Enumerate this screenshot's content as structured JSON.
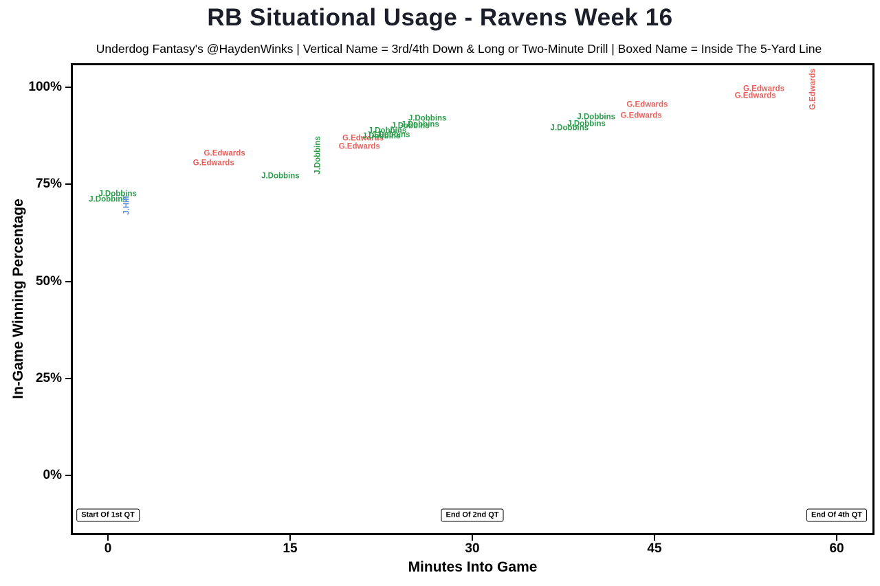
{
  "chart_data": {
    "type": "scatter",
    "title": "RB Situational Usage - Ravens Week 16",
    "subtitle": "Underdog Fantasy's @HaydenWinks | Vertical Name = 3rd/4th Down & Long or Two-Minute Drill | Boxed Name = Inside The 5-Yard Line",
    "xlabel": "Minutes Into Game",
    "ylabel": "In-Game Winning Percentage",
    "xlim": [
      -3,
      63
    ],
    "ylim": [
      -14,
      106
    ],
    "grid": false,
    "legend_position": "none",
    "x_ticks": [
      {
        "value": 0,
        "label": "0"
      },
      {
        "value": 15,
        "label": "15"
      },
      {
        "value": 30,
        "label": "30"
      },
      {
        "value": 45,
        "label": "45"
      },
      {
        "value": 60,
        "label": "60"
      }
    ],
    "y_ticks": [
      {
        "value": 0,
        "label": "0%"
      },
      {
        "value": 25,
        "label": "25%"
      },
      {
        "value": 50,
        "label": "50%"
      },
      {
        "value": 75,
        "label": "75%"
      },
      {
        "value": 100,
        "label": "100%"
      }
    ],
    "colors": {
      "J.Dobbins": "#2B9E4B",
      "G.Edwards": "#E8605C",
      "J.Hill": "#5C8FE0"
    },
    "points": [
      {
        "x": 0.0,
        "y": 71.0,
        "label": "J.Dobbins",
        "player": "J.Dobbins",
        "vertical": false
      },
      {
        "x": 0.8,
        "y": 72.4,
        "label": "J.Dobbins",
        "player": "J.Dobbins",
        "vertical": false
      },
      {
        "x": 1.6,
        "y": 69.5,
        "label": "J.Hill",
        "player": "J.Hill",
        "vertical": true
      },
      {
        "x": 8.7,
        "y": 80.3,
        "label": "G.Edwards",
        "player": "G.Edwards",
        "vertical": false
      },
      {
        "x": 9.6,
        "y": 82.8,
        "label": "G.Edwards",
        "player": "G.Edwards",
        "vertical": false
      },
      {
        "x": 14.2,
        "y": 77.0,
        "label": "J.Dobbins",
        "player": "J.Dobbins",
        "vertical": false
      },
      {
        "x": 17.3,
        "y": 82.5,
        "label": "J.Dobbins",
        "player": "J.Dobbins",
        "vertical": true
      },
      {
        "x": 20.7,
        "y": 84.6,
        "label": "G.Edwards",
        "player": "G.Edwards",
        "vertical": false
      },
      {
        "x": 21.0,
        "y": 86.7,
        "label": "G.Edwards",
        "player": "G.Edwards",
        "vertical": false
      },
      {
        "x": 22.5,
        "y": 87.2,
        "label": "J.Dobbins",
        "player": "J.Dobbins",
        "vertical": false
      },
      {
        "x": 23.3,
        "y": 87.6,
        "label": "J.Dobbins",
        "player": "J.Dobbins",
        "vertical": false
      },
      {
        "x": 23.0,
        "y": 88.6,
        "label": "J.Dobbins",
        "player": "J.Dobbins",
        "vertical": false
      },
      {
        "x": 24.9,
        "y": 90.0,
        "label": "J.Dobbins",
        "player": "J.Dobbins",
        "vertical": false
      },
      {
        "x": 25.7,
        "y": 90.3,
        "label": "J.Dobbins",
        "player": "J.Dobbins",
        "vertical": false
      },
      {
        "x": 26.3,
        "y": 91.8,
        "label": "J.Dobbins",
        "player": "J.Dobbins",
        "vertical": false
      },
      {
        "x": 38.0,
        "y": 89.3,
        "label": "J.Dobbins",
        "player": "J.Dobbins",
        "vertical": false
      },
      {
        "x": 39.4,
        "y": 90.5,
        "label": "J.Dobbins",
        "player": "J.Dobbins",
        "vertical": false
      },
      {
        "x": 40.2,
        "y": 92.3,
        "label": "J.Dobbins",
        "player": "J.Dobbins",
        "vertical": false
      },
      {
        "x": 43.9,
        "y": 92.6,
        "label": "G.Edwards",
        "player": "G.Edwards",
        "vertical": false
      },
      {
        "x": 44.4,
        "y": 95.4,
        "label": "G.Edwards",
        "player": "G.Edwards",
        "vertical": false
      },
      {
        "x": 53.3,
        "y": 97.7,
        "label": "G.Edwards",
        "player": "G.Edwards",
        "vertical": false
      },
      {
        "x": 54.0,
        "y": 99.5,
        "label": "G.Edwards",
        "player": "G.Edwards",
        "vertical": false
      },
      {
        "x": 58.1,
        "y": 99.5,
        "label": "G.Edwards",
        "player": "G.Edwards",
        "vertical": true
      }
    ],
    "annotations": [
      {
        "x": 0,
        "y": -10.3,
        "label": "Start Of 1st QT",
        "boxed": true
      },
      {
        "x": 30,
        "y": -10.3,
        "label": "End Of 2nd QT",
        "boxed": true
      },
      {
        "x": 60,
        "y": -10.3,
        "label": "End Of 4th QT",
        "boxed": true
      }
    ]
  }
}
